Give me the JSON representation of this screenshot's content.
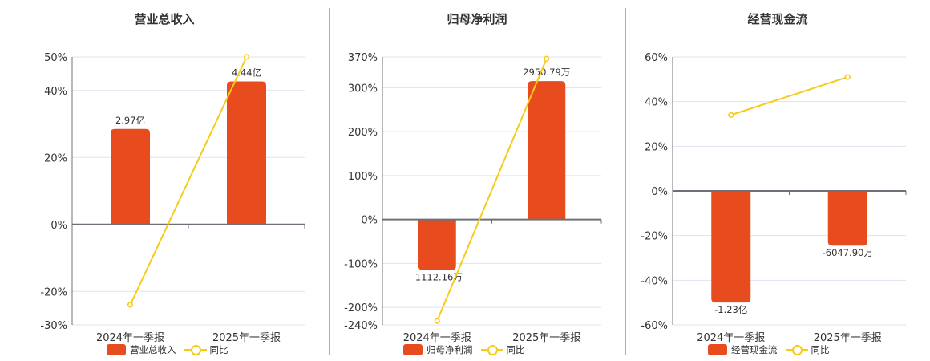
{
  "colors": {
    "bar": "#e84c1e",
    "line": "#f5cc1a",
    "grid": "#dde3ef",
    "axis": "#6e7079"
  },
  "chart_data": [
    {
      "type": "bar+line",
      "title": "营业总收入",
      "categories": [
        "2024年一季报",
        "2025年一季报"
      ],
      "yticks": [
        "50%",
        "40%",
        "20%",
        "0%",
        "-20%",
        "-30%"
      ],
      "ylim": [
        -30,
        50
      ],
      "series": [
        {
          "name": "营业总收入",
          "type": "bar",
          "labels": [
            "2.97亿",
            "4.44亿"
          ],
          "values_axis_pct": [
            28.5,
            42.7
          ]
        },
        {
          "name": "同比",
          "type": "line",
          "values": [
            -24,
            50
          ]
        }
      ],
      "legend": [
        "营业总收入",
        "同比"
      ]
    },
    {
      "type": "bar+line",
      "title": "归母净利润",
      "categories": [
        "2024年一季报",
        "2025年一季报"
      ],
      "yticks": [
        "370%",
        "300%",
        "200%",
        "100%",
        "0%",
        "-100%",
        "-200%",
        "-240%"
      ],
      "ylim": [
        -240,
        370
      ],
      "series": [
        {
          "name": "归母净利润",
          "type": "bar",
          "labels": [
            "-1112.16万",
            "2950.79万"
          ],
          "values_axis_pct": [
            -115,
            315
          ]
        },
        {
          "name": "同比",
          "type": "line",
          "values": [
            -231,
            366
          ]
        }
      ],
      "legend": [
        "归母净利润",
        "同比"
      ]
    },
    {
      "type": "bar+line",
      "title": "经营现金流",
      "categories": [
        "2024年一季报",
        "2025年一季报"
      ],
      "yticks": [
        "60%",
        "40%",
        "20%",
        "0%",
        "-20%",
        "-40%",
        "-60%"
      ],
      "ylim": [
        -60,
        60
      ],
      "series": [
        {
          "name": "经营现金流",
          "type": "bar",
          "labels": [
            "-1.23亿",
            "-6047.90万"
          ],
          "values_axis_pct": [
            -50,
            -24.5
          ]
        },
        {
          "name": "同比",
          "type": "line",
          "values": [
            34,
            51
          ]
        }
      ],
      "legend": [
        "经营现金流",
        "同比"
      ]
    }
  ],
  "panels": [
    {
      "title": "营业总收入",
      "legend_bar": "营业总收入",
      "legend_line": "同比"
    },
    {
      "title": "归母净利润",
      "legend_bar": "归母净利润",
      "legend_line": "同比"
    },
    {
      "title": "经营现金流",
      "legend_bar": "经营现金流",
      "legend_line": "同比"
    }
  ]
}
